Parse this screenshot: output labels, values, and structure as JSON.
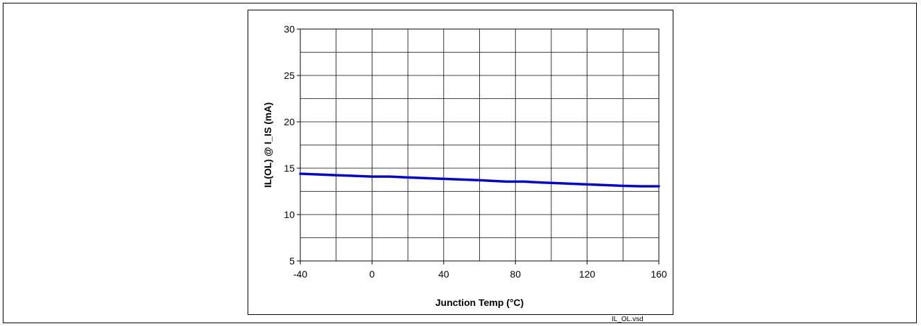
{
  "file_label": "IL_OL.vsd",
  "chart_data": {
    "type": "line",
    "xlabel": "Junction Temp (°C)",
    "ylabel": "IL(OL) @ I_IS (mA)",
    "xlim": [
      -40,
      160
    ],
    "ylim": [
      5,
      30
    ],
    "x_ticks": [
      -40,
      0,
      40,
      80,
      120,
      160
    ],
    "y_ticks": [
      5,
      10,
      15,
      20,
      25,
      30
    ],
    "x_grid_step": 20,
    "y_grid_step": 2.5,
    "grid": true,
    "line_color": "#0000dd",
    "series": [
      {
        "x": [
          -40,
          -20,
          0,
          10,
          20,
          40,
          60,
          75,
          85,
          95,
          120,
          140,
          150,
          160
        ],
        "values": [
          14.4,
          14.25,
          14.1,
          14.1,
          14.0,
          13.85,
          13.7,
          13.55,
          13.55,
          13.45,
          13.25,
          13.1,
          13.05,
          13.05
        ]
      }
    ]
  }
}
